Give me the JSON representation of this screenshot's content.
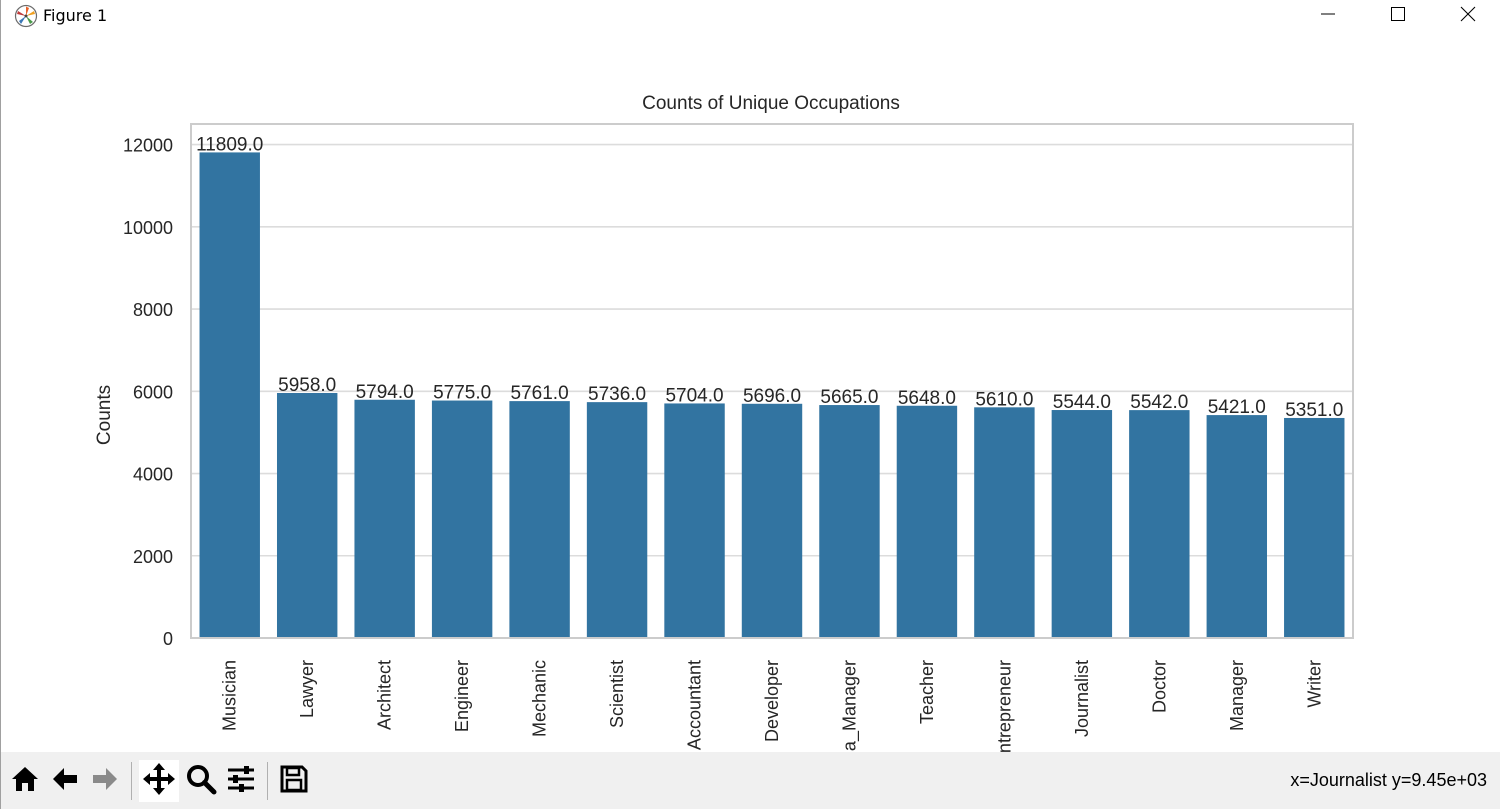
{
  "window": {
    "title": "Figure 1",
    "app_icon": "matplotlib-icon",
    "controls": [
      "minimize-icon",
      "maximize-icon",
      "close-icon"
    ]
  },
  "toolbar": {
    "tools": [
      "home-icon",
      "back-arrow-icon",
      "forward-arrow-icon",
      "pan-move-icon",
      "zoom-magnifier-icon",
      "configure-subplots-icon",
      "save-floppy-icon"
    ],
    "active_tool": "pan-move-icon",
    "coordinate_readout": "x=Journalist y=9.45e+03"
  },
  "colors": {
    "bar": "#3274a1",
    "grid": "#dcdcdc",
    "frame": "#cccccc",
    "toolbar_bg": "#f0f0f0"
  },
  "chart_data": {
    "type": "bar",
    "title": "Counts of Unique Occupations",
    "xlabel": "",
    "ylabel": "Counts",
    "ylim": [
      0,
      12500
    ],
    "yticks": [
      0,
      2000,
      4000,
      6000,
      8000,
      10000,
      12000
    ],
    "grid": true,
    "categories": [
      "Musician",
      "Lawyer",
      "Architect",
      "Engineer",
      "Mechanic",
      "Scientist",
      "Accountant",
      "Developer",
      "Media_Manager",
      "Teacher",
      "Entrepreneur",
      "Journalist",
      "Doctor",
      "Manager",
      "Writer"
    ],
    "values": [
      11809.0,
      5958.0,
      5794.0,
      5775.0,
      5761.0,
      5736.0,
      5704.0,
      5696.0,
      5665.0,
      5648.0,
      5610.0,
      5544.0,
      5542.0,
      5421.0,
      5351.0
    ],
    "data_labels": [
      "11809.0",
      "5958.0",
      "5794.0",
      "5775.0",
      "5761.0",
      "5736.0",
      "5704.0",
      "5696.0",
      "5665.0",
      "5648.0",
      "5610.0",
      "5544.0",
      "5542.0",
      "5421.0",
      "5351.0"
    ]
  }
}
